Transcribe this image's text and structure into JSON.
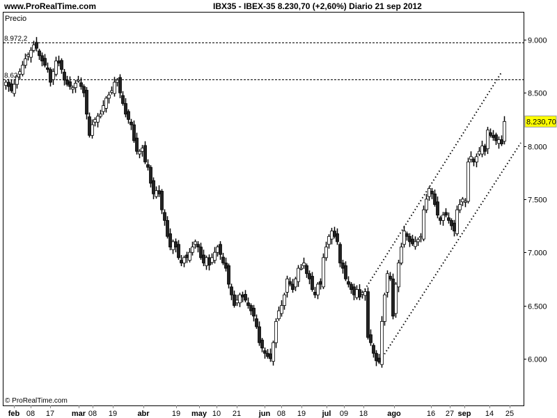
{
  "header": {
    "site": "www.ProRealTime.com",
    "title": "IBX35 - IBEX-35    8.230,70 (+2,60%)   Diario  21 sep 2012"
  },
  "chart_data": {
    "type": "candlestick",
    "panel_label": "Precio",
    "copyright": "© ProRealTime.com",
    "ylim": [
      5570,
      9270
    ],
    "y_ticks": [
      "9.000",
      "8.500",
      "8.000",
      "7.500",
      "7.000",
      "6.500",
      "6.000"
    ],
    "y_tick_values": [
      9000,
      8500,
      8000,
      7500,
      7000,
      6500,
      6000
    ],
    "x_ticks": [
      {
        "label": "feb",
        "bold": true
      },
      {
        "label": "08"
      },
      {
        "label": "17"
      },
      {
        "label": "mar",
        "bold": true
      },
      {
        "label": "08"
      },
      {
        "label": "19"
      },
      {
        "label": "abr",
        "bold": true
      },
      {
        "label": "19"
      },
      {
        "label": "may",
        "bold": true
      },
      {
        "label": "10"
      },
      {
        "label": "21"
      },
      {
        "label": "jun",
        "bold": true
      },
      {
        "label": "08"
      },
      {
        "label": "19"
      },
      {
        "label": "jul",
        "bold": true
      },
      {
        "label": "09"
      },
      {
        "label": "18"
      },
      {
        "label": "ago",
        "bold": true
      },
      {
        "label": "16"
      },
      {
        "label": "27"
      },
      {
        "label": "sep",
        "bold": true
      },
      {
        "label": "14"
      },
      {
        "label": "25"
      }
    ],
    "last_price_label": "8.230,70",
    "last_price": 8230.7,
    "horizontal_levels": [
      {
        "value": 8972.2,
        "label": "8.972,2"
      },
      {
        "value": 8627,
        "label": "8.627"
      }
    ],
    "trend_lines": [
      {
        "from": [
          129,
          6650
        ],
        "to": [
          178,
          8690
        ]
      },
      {
        "from": [
          134,
          5960
        ],
        "to": [
          185,
          8030
        ]
      }
    ],
    "close": [
      8600,
      8560,
      8520,
      8580,
      8650,
      8700,
      8760,
      8820,
      8860,
      8900,
      8950,
      8920,
      8850,
      8800,
      8760,
      8720,
      8600,
      8700,
      8800,
      8780,
      8720,
      8620,
      8580,
      8560,
      8550,
      8590,
      8620,
      8560,
      8500,
      8300,
      8100,
      8200,
      8250,
      8280,
      8300,
      8380,
      8450,
      8480,
      8520,
      8600,
      8620,
      8500,
      8400,
      8300,
      8250,
      8200,
      8050,
      7950,
      7950,
      7980,
      7850,
      7800,
      7650,
      7550,
      7580,
      7550,
      7400,
      7300,
      7150,
      7050,
      7100,
      7050,
      6950,
      6900,
      6950,
      6950,
      7000,
      7050,
      7100,
      7050,
      6950,
      6900,
      6950,
      6880,
      6950,
      7000,
      7050,
      6980,
      6900,
      6850,
      6700,
      6600,
      6500,
      6550,
      6600,
      6580,
      6550,
      6500,
      6450,
      6400,
      6300,
      6150,
      6100,
      6050,
      6020,
      6000,
      6150,
      6350,
      6450,
      6500,
      6600,
      6750,
      6700,
      6650,
      6750,
      6850,
      6850,
      6900,
      6800,
      6750,
      6650,
      6600,
      6700,
      6700,
      6950,
      7050,
      7150,
      7200,
      7150,
      7100,
      6900,
      6850,
      6750,
      6700,
      6650,
      6600,
      6650,
      6580,
      6620,
      6630,
      6200,
      6150,
      6050,
      5980,
      5970,
      6350,
      6600,
      6800,
      6750,
      6400,
      6700,
      6900,
      7050,
      7200,
      7150,
      7100,
      7080,
      7100,
      7120,
      7150,
      7400,
      7500,
      7600,
      7550,
      7450,
      7350,
      7300,
      7350,
      7350,
      7300,
      7250,
      7200,
      7400,
      7450,
      7500,
      7480,
      7850,
      7900,
      7850,
      7900,
      7950,
      8000,
      7950,
      8150,
      8100,
      8080,
      8050,
      8060,
      8020,
      8230.7
    ],
    "colors": {
      "up": "#ffffff",
      "down": "#222222",
      "outline": "#000000",
      "last_price_bg": "#ffff00"
    }
  }
}
